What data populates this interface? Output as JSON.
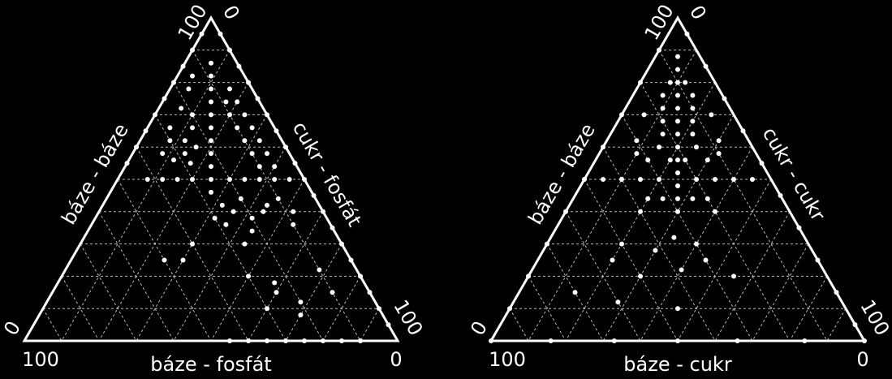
{
  "chart_data": [
    {
      "type": "ternary",
      "color": "#ffffff",
      "grid": true,
      "left_axis": {
        "label": "báze - báze",
        "lim": [
          0,
          100
        ]
      },
      "right_axis": {
        "label": "cukr - fosfát",
        "lim": [
          0,
          100
        ]
      },
      "bottom_axis": {
        "label": "báze - fosfát",
        "lim": [
          100,
          0
        ]
      },
      "grid_ticks": [
        10,
        20,
        30,
        40,
        50,
        60,
        70,
        80,
        90
      ],
      "points": [
        [
          95,
          0,
          5
        ],
        [
          90,
          0,
          10
        ],
        [
          85,
          0,
          15
        ],
        [
          80,
          0,
          20
        ],
        [
          75,
          0,
          25
        ],
        [
          70,
          0,
          30
        ],
        [
          65,
          0,
          35
        ],
        [
          60,
          0,
          40
        ],
        [
          55,
          0,
          45
        ],
        [
          50,
          0,
          50
        ],
        [
          45,
          0,
          55
        ],
        [
          40,
          0,
          60
        ],
        [
          35,
          0,
          65
        ],
        [
          30,
          0,
          70
        ],
        [
          25,
          0,
          75
        ],
        [
          20,
          0,
          80
        ],
        [
          15,
          0,
          85
        ],
        [
          10,
          0,
          90
        ],
        [
          5,
          0,
          95
        ],
        [
          95,
          5,
          0
        ],
        [
          90,
          10,
          0
        ],
        [
          85,
          15,
          0
        ],
        [
          80,
          20,
          0
        ],
        [
          75,
          25,
          0
        ],
        [
          70,
          30,
          0
        ],
        [
          65,
          35,
          0
        ],
        [
          60,
          40,
          0
        ],
        [
          55,
          45,
          0
        ],
        [
          0,
          45,
          55
        ],
        [
          0,
          40,
          60
        ],
        [
          0,
          35,
          65
        ],
        [
          0,
          30,
          70
        ],
        [
          0,
          25,
          75
        ],
        [
          0,
          20,
          80
        ],
        [
          0,
          15,
          85
        ],
        [
          0,
          10,
          90
        ],
        [
          46,
          27,
          27
        ],
        [
          50,
          25,
          25
        ],
        [
          54,
          23,
          23
        ],
        [
          58,
          21,
          21
        ],
        [
          62,
          19,
          19
        ],
        [
          66,
          17,
          17
        ],
        [
          70,
          15,
          15
        ],
        [
          74,
          13,
          13
        ],
        [
          78,
          11,
          11
        ],
        [
          82,
          9,
          9
        ],
        [
          86,
          7,
          7
        ],
        [
          50,
          42,
          8
        ],
        [
          50,
          38,
          12
        ],
        [
          50,
          34,
          16
        ],
        [
          50,
          30,
          20
        ],
        [
          50,
          20,
          30
        ],
        [
          50,
          16,
          34
        ],
        [
          50,
          12,
          38
        ],
        [
          50,
          8,
          42
        ],
        [
          50,
          4,
          46
        ],
        [
          78,
          6,
          16
        ],
        [
          74,
          6,
          20
        ],
        [
          70,
          6,
          24
        ],
        [
          66,
          6,
          28
        ],
        [
          62,
          6,
          32
        ],
        [
          58,
          6,
          36
        ],
        [
          54,
          6,
          40
        ],
        [
          74,
          9,
          17
        ],
        [
          70,
          10,
          20
        ],
        [
          66,
          10,
          24
        ],
        [
          62,
          10,
          28
        ],
        [
          58,
          10,
          32
        ],
        [
          54,
          10,
          36
        ],
        [
          70,
          20,
          10
        ],
        [
          66,
          22,
          12
        ],
        [
          62,
          26,
          12
        ],
        [
          58,
          28,
          14
        ],
        [
          56,
          32,
          12
        ],
        [
          62,
          30,
          8
        ],
        [
          58,
          34,
          8
        ],
        [
          66,
          28,
          6
        ],
        [
          72,
          22,
          6
        ],
        [
          78,
          17,
          5
        ],
        [
          82,
          14,
          4
        ],
        [
          60,
          24,
          16
        ],
        [
          55,
          28,
          17
        ],
        [
          44,
          10,
          46
        ],
        [
          42,
          14,
          44
        ],
        [
          40,
          16,
          44
        ],
        [
          38,
          20,
          42
        ],
        [
          40,
          8,
          52
        ],
        [
          36,
          10,
          54
        ],
        [
          44,
          20,
          36
        ],
        [
          40,
          24,
          36
        ],
        [
          36,
          28,
          36
        ],
        [
          42,
          26,
          32
        ],
        [
          38,
          30,
          32
        ],
        [
          34,
          22,
          44
        ],
        [
          30,
          26,
          44
        ],
        [
          25,
          50,
          25
        ],
        [
          30,
          40,
          30
        ],
        [
          20,
          30,
          50
        ],
        [
          18,
          24,
          58
        ],
        [
          15,
          25,
          60
        ],
        [
          12,
          20,
          68
        ],
        [
          10,
          30,
          60
        ],
        [
          8,
          22,
          70
        ],
        [
          25,
          45,
          30
        ],
        [
          15,
          10,
          75
        ],
        [
          22,
          10,
          68
        ]
      ]
    },
    {
      "type": "ternary",
      "color": "#ffffff",
      "grid": true,
      "left_axis": {
        "label": "báze - báze",
        "lim": [
          0,
          100
        ]
      },
      "right_axis": {
        "label": "cukr - cukr",
        "lim": [
          0,
          100
        ]
      },
      "bottom_axis": {
        "label": "báze - cukr",
        "lim": [
          100,
          0
        ]
      },
      "grid_ticks": [
        10,
        20,
        30,
        40,
        50,
        60,
        70,
        80,
        90
      ],
      "points": [
        [
          95,
          0,
          5
        ],
        [
          85,
          0,
          15
        ],
        [
          75,
          0,
          25
        ],
        [
          65,
          0,
          35
        ],
        [
          55,
          0,
          45
        ],
        [
          45,
          0,
          55
        ],
        [
          35,
          0,
          65
        ],
        [
          25,
          0,
          75
        ],
        [
          15,
          0,
          85
        ],
        [
          5,
          0,
          95
        ],
        [
          90,
          10,
          0
        ],
        [
          80,
          20,
          0
        ],
        [
          70,
          30,
          0
        ],
        [
          60,
          40,
          0
        ],
        [
          50,
          50,
          0
        ],
        [
          40,
          60,
          0
        ],
        [
          30,
          70,
          0
        ],
        [
          20,
          80,
          0
        ],
        [
          10,
          90,
          0
        ],
        [
          0,
          100,
          0
        ],
        [
          0,
          84,
          16
        ],
        [
          0,
          67,
          33
        ],
        [
          0,
          50,
          50
        ],
        [
          0,
          34,
          66
        ],
        [
          0,
          16,
          84
        ],
        [
          0,
          0,
          100
        ],
        [
          40,
          30,
          30
        ],
        [
          44,
          28,
          28
        ],
        [
          48,
          26,
          26
        ],
        [
          52,
          24,
          24
        ],
        [
          56,
          22,
          22
        ],
        [
          60,
          20,
          20
        ],
        [
          64,
          18,
          18
        ],
        [
          68,
          16,
          16
        ],
        [
          72,
          14,
          14
        ],
        [
          76,
          12,
          12
        ],
        [
          80,
          10,
          10
        ],
        [
          84,
          8,
          8
        ],
        [
          88,
          6,
          6
        ],
        [
          50,
          40,
          10
        ],
        [
          50,
          35,
          15
        ],
        [
          50,
          30,
          20
        ],
        [
          50,
          20,
          30
        ],
        [
          50,
          15,
          35
        ],
        [
          50,
          10,
          40
        ],
        [
          50,
          45,
          5
        ],
        [
          50,
          5,
          45
        ],
        [
          60,
          25,
          15
        ],
        [
          60,
          15,
          25
        ],
        [
          64,
          22,
          14
        ],
        [
          64,
          14,
          22
        ],
        [
          68,
          20,
          12
        ],
        [
          68,
          12,
          20
        ],
        [
          72,
          18,
          10
        ],
        [
          72,
          10,
          18
        ],
        [
          76,
          16,
          8
        ],
        [
          76,
          8,
          16
        ],
        [
          56,
          30,
          14
        ],
        [
          56,
          14,
          30
        ],
        [
          56,
          24,
          20
        ],
        [
          56,
          20,
          24
        ],
        [
          58,
          32,
          10
        ],
        [
          58,
          10,
          32
        ],
        [
          44,
          36,
          20
        ],
        [
          44,
          20,
          36
        ],
        [
          44,
          32,
          24
        ],
        [
          44,
          24,
          32
        ],
        [
          40,
          40,
          20
        ],
        [
          40,
          20,
          40
        ],
        [
          70,
          24,
          6
        ],
        [
          70,
          6,
          24
        ],
        [
          62,
          30,
          8
        ],
        [
          62,
          8,
          30
        ],
        [
          80,
          12,
          8
        ],
        [
          80,
          8,
          12
        ],
        [
          30,
          50,
          20
        ],
        [
          25,
          55,
          20
        ],
        [
          20,
          50,
          30
        ],
        [
          15,
          70,
          15
        ],
        [
          12,
          60,
          28
        ],
        [
          25,
          30,
          45
        ],
        [
          20,
          25,
          55
        ],
        [
          22,
          38,
          40
        ],
        [
          28,
          42,
          30
        ],
        [
          30,
          30,
          40
        ],
        [
          10,
          45,
          45
        ],
        [
          32,
          35,
          33
        ]
      ]
    }
  ]
}
